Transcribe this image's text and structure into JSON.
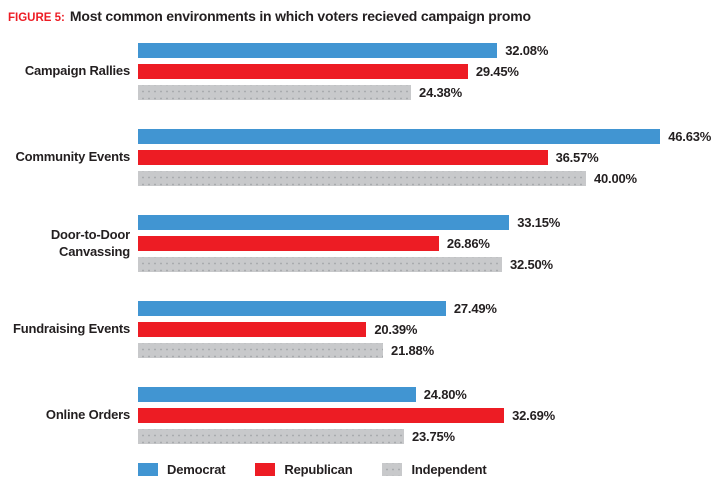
{
  "figure": {
    "label": "FIGURE 5:",
    "title": "Most common environments in which voters recieved campaign promo"
  },
  "colors": {
    "democrat": "#4195d2",
    "republican": "#ed1c24",
    "independent": "#c8c9cb",
    "title_accent": "#ed1c24",
    "text": "#231f20"
  },
  "chart_data": {
    "type": "bar",
    "orientation": "horizontal",
    "unit": "percent",
    "xlim": [
      0,
      50
    ],
    "grid": false,
    "legend_position": "bottom",
    "title": "Most common environments in which voters recieved campaign promo",
    "categories": [
      "Campaign Rallies",
      "Community Events",
      "Door-to-Door Canvassing",
      "Fundraising Events",
      "Online Orders"
    ],
    "series": [
      {
        "name": "Democrat",
        "color": "#4195d2",
        "pattern": "solid",
        "values": [
          32.08,
          46.63,
          33.15,
          27.49,
          24.8
        ],
        "labels": [
          "32.08%",
          "46.63%",
          "33.15%",
          "27.49%",
          "24.80%"
        ]
      },
      {
        "name": "Republican",
        "color": "#ed1c24",
        "pattern": "solid",
        "values": [
          29.45,
          36.57,
          26.86,
          20.39,
          32.69
        ],
        "labels": [
          "29.45%",
          "36.57%",
          "26.86%",
          "20.39%",
          "32.69%"
        ]
      },
      {
        "name": "Independent",
        "color": "#c8c9cb",
        "pattern": "dotted",
        "values": [
          24.38,
          40.0,
          32.5,
          21.88,
          23.75
        ],
        "labels": [
          "24.38%",
          "40.00%",
          "32.50%",
          "21.88%",
          "23.75%"
        ]
      }
    ]
  },
  "legend": {
    "items": [
      {
        "label": "Democrat",
        "color": "#4195d2",
        "pattern": "solid"
      },
      {
        "label": "Republican",
        "color": "#ed1c24",
        "pattern": "solid"
      },
      {
        "label": "Independent",
        "color": "#c8c9cb",
        "pattern": "dotted"
      }
    ]
  }
}
